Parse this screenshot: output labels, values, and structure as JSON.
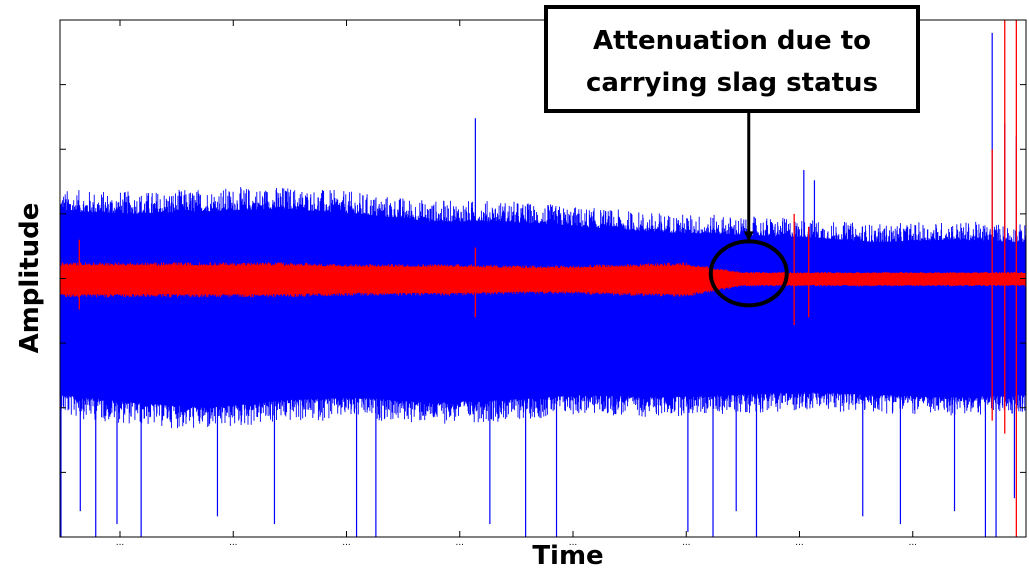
{
  "chart_data": {
    "type": "line",
    "title": "",
    "xlabel": "Time",
    "ylabel": "Amplitude",
    "grid": false,
    "legend": "none",
    "x_tick_labels": [
      "...",
      "...",
      "...",
      "...",
      "...",
      "...",
      "...",
      "..."
    ],
    "x_range": [
      0,
      1
    ],
    "y_range": [
      -1,
      1
    ],
    "series": [
      {
        "color": "#0000ff",
        "envelope_upper": [
          0.26,
          0.25,
          0.26,
          0.27,
          0.25,
          0.22,
          0.22,
          0.2,
          0.18,
          0.17,
          0.16,
          0.14,
          0.15,
          0.14
        ],
        "envelope_lower": [
          -0.45,
          -0.48,
          -0.5,
          -0.47,
          -0.46,
          -0.48,
          -0.47,
          -0.45,
          -0.46,
          -0.45,
          -0.44,
          -0.45,
          -0.46,
          -0.45
        ],
        "peaks": [
          {
            "x": 0.43,
            "y": 0.62
          },
          {
            "x": 0.77,
            "y": 0.42
          },
          {
            "x": 0.781,
            "y": 0.38
          },
          {
            "x": 0.965,
            "y": 0.95
          },
          {
            "x": 0.978,
            "y": 0.6
          },
          {
            "x": 0.99,
            "y": 0.55
          }
        ],
        "troughs": [
          {
            "x": 0.001,
            "y": -1.0
          },
          {
            "x": 0.021,
            "y": -0.9
          },
          {
            "x": 0.037,
            "y": -1.0
          },
          {
            "x": 0.059,
            "y": -0.95
          },
          {
            "x": 0.084,
            "y": -1.0
          },
          {
            "x": 0.163,
            "y": -0.92
          },
          {
            "x": 0.222,
            "y": -0.95
          },
          {
            "x": 0.307,
            "y": -1.0
          },
          {
            "x": 0.327,
            "y": -1.0
          },
          {
            "x": 0.445,
            "y": -0.95
          },
          {
            "x": 0.482,
            "y": -1.0
          },
          {
            "x": 0.514,
            "y": -1.0
          },
          {
            "x": 0.65,
            "y": -0.98
          },
          {
            "x": 0.676,
            "y": -1.0
          },
          {
            "x": 0.7,
            "y": -0.9
          },
          {
            "x": 0.721,
            "y": -1.0
          },
          {
            "x": 0.831,
            "y": -0.92
          },
          {
            "x": 0.87,
            "y": -0.95
          },
          {
            "x": 0.926,
            "y": -0.9
          },
          {
            "x": 0.958,
            "y": -1.0
          },
          {
            "x": 0.969,
            "y": -1.0
          },
          {
            "x": 0.988,
            "y": -0.85
          }
        ]
      },
      {
        "color": "#ff0000",
        "envelope_upper": [
          0.05,
          0.05,
          0.05,
          0.05,
          0.05,
          0.045,
          0.045,
          0.045,
          0.04,
          0.04,
          0.045,
          0.05,
          0.02,
          0.02,
          0.02,
          0.02,
          0.02,
          0.02
        ],
        "envelope_lower": [
          -0.06,
          -0.06,
          -0.06,
          -0.06,
          -0.06,
          -0.055,
          -0.055,
          -0.055,
          -0.05,
          -0.05,
          -0.055,
          -0.06,
          -0.025,
          -0.025,
          -0.025,
          -0.025,
          -0.025,
          -0.025
        ],
        "spikes": [
          {
            "x": 0.02,
            "y1": -0.12,
            "y2": 0.15
          },
          {
            "x": 0.43,
            "y1": -0.15,
            "y2": 0.12
          },
          {
            "x": 0.76,
            "y1": -0.18,
            "y2": 0.25
          },
          {
            "x": 0.775,
            "y1": -0.15,
            "y2": 0.2
          },
          {
            "x": 0.965,
            "y1": -0.55,
            "y2": 0.5
          },
          {
            "x": 0.978,
            "y1": -0.6,
            "y2": 1.0
          },
          {
            "x": 0.99,
            "y1": -1.0,
            "y2": 1.0
          }
        ]
      }
    ],
    "annotations": [
      {
        "text_lines": [
          "Attenuation due to",
          "carrying slag status"
        ],
        "target_x": 0.713,
        "target_y": 0.02
      }
    ]
  }
}
